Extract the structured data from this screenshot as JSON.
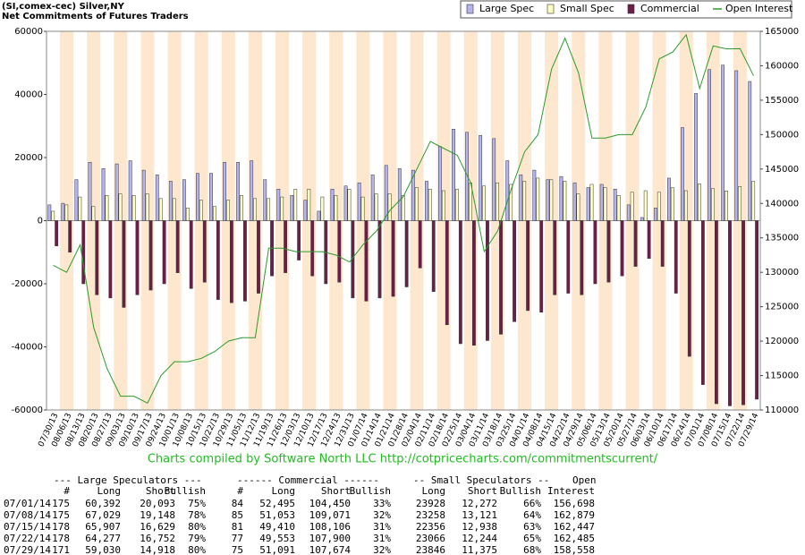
{
  "chart_data": {
    "type": "bar",
    "title": "(SI,comex-cec) Silver,NY",
    "subtitle": "Net Commitments of Futures Traders",
    "footer": "Charts compiled by Software North LLC  http://cotpricecharts.com/commitmentscurrent/",
    "categories": [
      "07/30/13",
      "08/06/13",
      "08/13/13",
      "08/20/13",
      "08/27/13",
      "09/03/13",
      "09/10/13",
      "09/17/13",
      "09/24/13",
      "10/01/13",
      "10/08/13",
      "10/15/13",
      "10/22/13",
      "10/29/13",
      "11/05/13",
      "11/12/13",
      "11/19/13",
      "11/26/13",
      "12/03/13",
      "12/10/13",
      "12/17/13",
      "12/24/13",
      "12/31/13",
      "01/07/14",
      "01/14/14",
      "01/21/14",
      "01/28/14",
      "02/04/14",
      "02/11/14",
      "02/18/14",
      "02/25/14",
      "03/04/14",
      "03/11/14",
      "03/18/14",
      "03/25/14",
      "04/01/14",
      "04/08/14",
      "04/15/14",
      "04/22/14",
      "04/29/14",
      "05/06/14",
      "05/13/14",
      "05/20/14",
      "05/27/14",
      "06/03/14",
      "06/10/14",
      "06/17/14",
      "06/24/14",
      "07/01/14",
      "07/08/14",
      "07/15/14",
      "07/22/14",
      "07/29/14"
    ],
    "series": [
      {
        "name": "Large Spec",
        "color": "#b4b4f0",
        "values": [
          5000,
          5500,
          13000,
          18500,
          16500,
          18000,
          19000,
          16000,
          14500,
          12500,
          13000,
          15000,
          15000,
          18500,
          18500,
          19000,
          13000,
          10000,
          8000,
          6500,
          3000,
          10000,
          11000,
          12000,
          14500,
          17500,
          16500,
          16000,
          12500,
          23500,
          29000,
          28000,
          27000,
          26000,
          19000,
          14500,
          16000,
          13000,
          14000,
          12000,
          10500,
          11500,
          10000,
          5000,
          1000,
          4000,
          13500,
          29500,
          40299,
          47881,
          49278,
          47525,
          44112
        ]
      },
      {
        "name": "Small Spec",
        "color": "#ffffc4",
        "values": [
          3000,
          5000,
          7500,
          4500,
          8000,
          8500,
          8000,
          8500,
          7000,
          7000,
          4000,
          6500,
          4500,
          6500,
          8000,
          7000,
          7000,
          7500,
          10000,
          10000,
          7500,
          8000,
          10000,
          7500,
          8500,
          8500,
          8000,
          10500,
          10000,
          9500,
          10000,
          12000,
          11000,
          12000,
          11500,
          12500,
          13500,
          13000,
          12500,
          8500,
          11500,
          10500,
          8000,
          9000,
          9500,
          9000,
          10500,
          9500,
          11656,
          10137,
          9418,
          10822,
          12471
        ]
      },
      {
        "name": "Commercial",
        "color": "#6e1e46",
        "values": [
          -8000,
          -10000,
          -20000,
          -23500,
          -24500,
          -27500,
          -23500,
          -22000,
          -20000,
          -16500,
          -21500,
          -19500,
          -25000,
          -26000,
          -25500,
          -23000,
          -17500,
          -16500,
          -12500,
          -17500,
          -20000,
          -19500,
          -24500,
          -25500,
          -24500,
          -24000,
          -21000,
          -15000,
          -22500,
          -33000,
          -39000,
          -39500,
          -38000,
          -36000,
          -32000,
          -28500,
          -29000,
          -23500,
          -23000,
          -23500,
          -20000,
          -19500,
          -17500,
          -14500,
          -12000,
          -14500,
          -23000,
          -43000,
          -51955,
          -58018,
          -58696,
          -58347,
          -56583
        ]
      },
      {
        "name": "Open Interest",
        "color": "#2a9a2a",
        "axis": "y2",
        "values": [
          131000,
          130000,
          134000,
          122000,
          116000,
          112000,
          112000,
          111000,
          115000,
          117000,
          117000,
          117500,
          118500,
          120000,
          120500,
          120500,
          133500,
          133500,
          133000,
          133000,
          133000,
          132500,
          131500,
          134000,
          136000,
          139000,
          141000,
          145000,
          149000,
          148000,
          147000,
          143000,
          133000,
          136000,
          142000,
          147500,
          150000,
          159500,
          164000,
          159000,
          149500,
          149500,
          150000,
          150000,
          154000,
          161000,
          162000,
          164500,
          156698,
          162879,
          162447,
          162485,
          158558
        ]
      }
    ],
    "ylim": [
      -60000,
      60000
    ],
    "yticks": [
      -60000,
      -40000,
      -20000,
      0,
      20000,
      40000,
      60000
    ],
    "y2lim": [
      110000,
      165000
    ],
    "y2ticks": [
      110000,
      115000,
      120000,
      125000,
      130000,
      135000,
      140000,
      145000,
      150000,
      155000,
      160000,
      165000
    ],
    "grid": false,
    "legend": "top-right"
  },
  "table": {
    "header_groups": [
      "--- Large Speculators ---",
      "------ Commercial ------",
      "-- Small Speculators --",
      "Open"
    ],
    "columns": [
      "#",
      "Long",
      "Short",
      "Bullish",
      "#",
      "Long",
      "Short",
      "Bullish",
      "Long",
      "Short",
      "Bullish",
      "Interest"
    ],
    "rows": [
      [
        "07/01/14",
        "175",
        "60,392",
        "20,093",
        "75%",
        "84",
        "52,495",
        "104,450",
        "33%",
        "23928",
        "12,272",
        "66%",
        "156,698"
      ],
      [
        "07/08/14",
        "175",
        "67,029",
        "19,148",
        "78%",
        "85",
        "51,053",
        "109,071",
        "32%",
        "23258",
        "13,121",
        "64%",
        "162,879"
      ],
      [
        "07/15/14",
        "178",
        "65,907",
        "16,629",
        "80%",
        "81",
        "49,410",
        "108,106",
        "31%",
        "22356",
        "12,938",
        "63%",
        "162,447"
      ],
      [
        "07/22/14",
        "178",
        "64,277",
        "16,752",
        "79%",
        "77",
        "49,553",
        "107,900",
        "31%",
        "23066",
        "12,244",
        "65%",
        "162,485"
      ],
      [
        "07/29/14",
        "171",
        "59,030",
        "14,918",
        "80%",
        "75",
        "51,091",
        "107,674",
        "32%",
        "23846",
        "11,375",
        "68%",
        "158,558"
      ]
    ]
  }
}
